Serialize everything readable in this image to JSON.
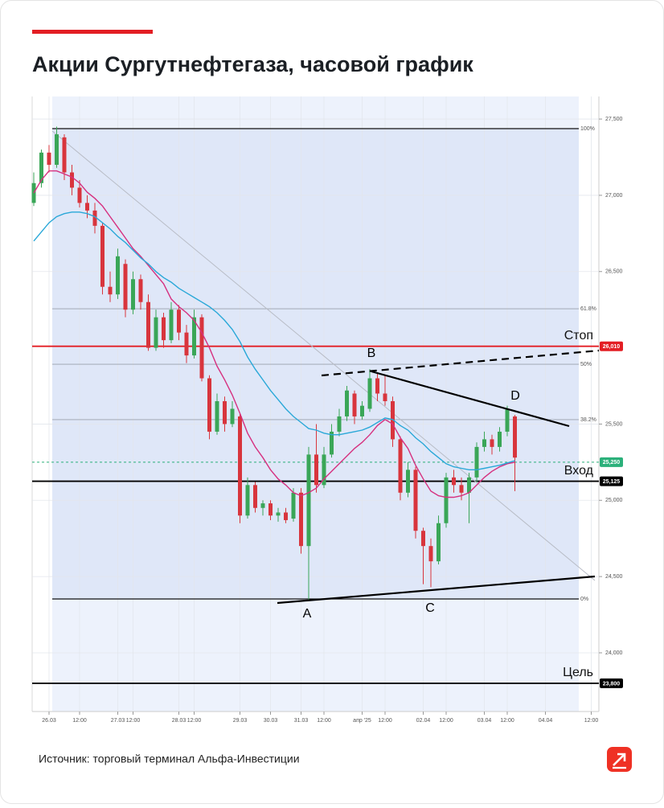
{
  "chart_data": {
    "type": "candlestick",
    "title": "Акции Сургутнефтегаза, часовой график",
    "source": "Источник: торговый терминал Альфа-Инвестиции",
    "categories": [
      null,
      null,
      "26.03",
      null,
      null,
      null,
      "12:00",
      null,
      null,
      null,
      null,
      "27.03",
      null,
      "12:00",
      null,
      null,
      null,
      null,
      null,
      "28.03",
      null,
      "12:00",
      null,
      null,
      null,
      null,
      null,
      "29.03",
      null,
      null,
      null,
      "30.03",
      null,
      null,
      null,
      "31.03",
      null,
      null,
      "12:00",
      null,
      null,
      null,
      null,
      "апр '25",
      null,
      null,
      "12:00",
      null,
      null,
      null,
      null,
      "02.04",
      null,
      null,
      "12:00",
      null,
      null,
      null,
      null,
      "03.04",
      null,
      null,
      "12:00",
      null,
      null,
      null,
      null,
      "04.04",
      null,
      null,
      null,
      null,
      null,
      "12:00"
    ],
    "open": [
      26950,
      27080,
      27280,
      27200,
      27380,
      27150,
      27050,
      26950,
      26900,
      26800,
      26400,
      26350,
      26550,
      26250,
      26450,
      26300,
      26000,
      26200,
      26050,
      26250,
      26100,
      25950,
      26200,
      25800,
      25450,
      25650,
      25500,
      25550,
      24900,
      25100,
      24950,
      24980,
      24900,
      24920,
      24880,
      25050,
      24700,
      25300,
      25100,
      25300,
      25450,
      25550,
      25700,
      25550,
      25600,
      25800,
      25700,
      25650,
      25400,
      25050,
      25200,
      24800,
      24700,
      24600,
      24850,
      25150,
      25100,
      25050,
      25150,
      25350,
      25400,
      25350,
      25450,
      25550,
      null,
      null,
      null,
      null,
      null,
      null,
      null,
      null,
      null,
      null
    ],
    "high": [
      27150,
      27300,
      27330,
      27450,
      27400,
      27200,
      27100,
      27000,
      26950,
      26820,
      26500,
      26650,
      26580,
      26500,
      26480,
      26350,
      26250,
      26230,
      26300,
      26280,
      26150,
      26250,
      26220,
      25820,
      25700,
      25680,
      25650,
      25570,
      25150,
      25120,
      25000,
      25000,
      24950,
      24950,
      25080,
      25080,
      25350,
      25500,
      25350,
      25500,
      25600,
      25750,
      25720,
      25650,
      25860,
      25830,
      25820,
      25680,
      25420,
      25250,
      25220,
      24820,
      24750,
      24900,
      25180,
      25200,
      25150,
      25180,
      25380,
      25450,
      25430,
      25480,
      25620,
      25560,
      null,
      null,
      null,
      null,
      null,
      null,
      null,
      null,
      null,
      null
    ],
    "low": [
      26930,
      27050,
      27150,
      27180,
      27100,
      27000,
      26920,
      26850,
      26750,
      26350,
      26300,
      26320,
      26200,
      26220,
      26250,
      25980,
      25980,
      26000,
      26030,
      26050,
      25900,
      25930,
      25780,
      25400,
      25430,
      25450,
      25480,
      24850,
      24880,
      24920,
      24900,
      24870,
      24860,
      24850,
      24860,
      24650,
      24350,
      25050,
      25080,
      25280,
      25420,
      25520,
      25500,
      25530,
      25580,
      25650,
      25620,
      25350,
      25000,
      25020,
      24750,
      24450,
      24430,
      24580,
      24820,
      25050,
      25000,
      24850,
      25120,
      25320,
      25300,
      25320,
      25420,
      25060,
      null,
      null,
      null,
      null,
      null,
      null,
      null,
      null,
      null,
      null
    ],
    "close": [
      27080,
      27280,
      27200,
      27400,
      27150,
      27050,
      26950,
      26900,
      26800,
      26400,
      26350,
      26600,
      26250,
      26450,
      26300,
      26000,
      26200,
      26050,
      26250,
      26100,
      25950,
      26200,
      25800,
      25450,
      25650,
      25500,
      25600,
      24900,
      25100,
      24950,
      24980,
      24900,
      24920,
      24870,
      25050,
      24700,
      25300,
      25100,
      25300,
      25450,
      25550,
      25720,
      25550,
      25620,
      25800,
      25700,
      25650,
      25400,
      25050,
      25200,
      24800,
      24700,
      24600,
      24850,
      25150,
      25100,
      25050,
      25150,
      25350,
      25400,
      25350,
      25450,
      25600,
      25280,
      null,
      null,
      null,
      null,
      null,
      null,
      null,
      null,
      null,
      null
    ],
    "up_color": "#3aa657",
    "down_color": "#d8353d",
    "series": [
      {
        "color": "#d6307f",
        "values": [
          27015,
          27100,
          27160,
          27160,
          27140,
          27120,
          27080,
          27020,
          26980,
          26930,
          26860,
          26790,
          26720,
          26650,
          26600,
          26540,
          26480,
          26420,
          26320,
          26270,
          26230,
          26180,
          26100,
          26000,
          25880,
          25790,
          25690,
          25570,
          25440,
          25350,
          25280,
          25200,
          25140,
          25100,
          25050,
          25030,
          25050,
          25080,
          25140,
          25190,
          25240,
          25290,
          25340,
          25380,
          25430,
          25490,
          25530,
          25500,
          25410,
          25340,
          25230,
          25140,
          25060,
          25030,
          25020,
          25020,
          25030,
          25050,
          25100,
          25150,
          25190,
          25220,
          25240,
          25250,
          null,
          null,
          null,
          null,
          null,
          null,
          null,
          null,
          null,
          null
        ]
      },
      {
        "color": "#2aa8d8",
        "values": [
          26700,
          26760,
          26820,
          26860,
          26880,
          26890,
          26890,
          26880,
          26860,
          26820,
          26780,
          26730,
          26690,
          26640,
          26590,
          26550,
          26500,
          26460,
          26430,
          26390,
          26360,
          26330,
          26300,
          26270,
          26230,
          26180,
          26120,
          26040,
          25940,
          25860,
          25790,
          25720,
          25660,
          25600,
          25550,
          25510,
          25470,
          25460,
          25440,
          25430,
          25430,
          25440,
          25450,
          25460,
          25480,
          25510,
          25540,
          25530,
          25490,
          25460,
          25410,
          25370,
          25320,
          25280,
          25240,
          25220,
          25210,
          25200,
          25200,
          25210,
          25220,
          25230,
          25245,
          25260,
          null,
          null,
          null,
          null,
          null,
          null,
          null,
          null,
          null,
          null
        ]
      }
    ],
    "ylim": [
      23615,
      27648
    ],
    "yticks": [
      {
        "value": 27500,
        "label": "27,500"
      },
      {
        "value": 27000,
        "label": "27,000"
      },
      {
        "value": 26500,
        "label": "26,500"
      },
      {
        "value": 25500,
        "label": "25,500"
      },
      {
        "value": 25000,
        "label": "25,000"
      },
      {
        "value": 24500,
        "label": "24,500"
      },
      {
        "value": 24000,
        "label": "24,000"
      }
    ],
    "grid": true,
    "fib_levels": [
      {
        "value": 27437,
        "label": "100%"
      },
      {
        "value": 26256,
        "label": "61.8%"
      },
      {
        "value": 25892,
        "label": "50%"
      },
      {
        "value": 25529,
        "label": "38.2%"
      },
      {
        "value": 24353,
        "label": "0%"
      }
    ],
    "price_lines": [
      {
        "value": 26010,
        "label": "26,010",
        "name": "Стоп",
        "color": "#e31e24"
      },
      {
        "value": 25250,
        "label": "25,250",
        "color": "#2bb07a",
        "dashed": true
      },
      {
        "value": 25125,
        "label": "25,125",
        "name": "Вход",
        "color": "#000000"
      },
      {
        "value": 23800,
        "label": "23,800",
        "name": "Цель",
        "color": "#000000"
      }
    ],
    "pattern_points": [
      "A",
      "B",
      "C",
      "D"
    ]
  }
}
